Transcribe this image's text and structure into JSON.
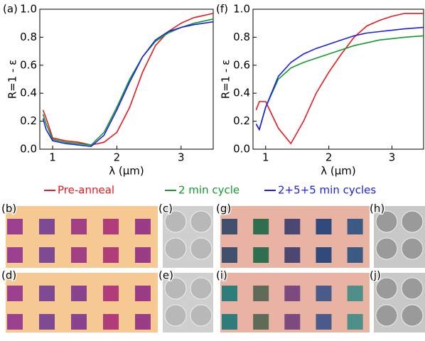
{
  "chart_data": [
    {
      "type": "line",
      "panel_label": "(a)",
      "xlabel": "λ (μm)",
      "ylabel": "R=1 - ε",
      "xlim": [
        0.8,
        3.5
      ],
      "ylim": [
        0,
        1
      ],
      "xticks": [
        1,
        2,
        3
      ],
      "yticks": [
        {
          "value": 0,
          "label": "0.0"
        },
        0.2,
        0.4,
        0.6,
        0.8,
        {
          "value": 1,
          "label": "1.0"
        }
      ],
      "x": [
        0.85,
        0.9,
        1.0,
        1.2,
        1.4,
        1.6,
        1.8,
        2.0,
        2.2,
        2.4,
        2.6,
        2.8,
        3.0,
        3.2,
        3.5
      ],
      "series": [
        {
          "name": "Pre-anneal",
          "color": "#e8191c",
          "values": [
            0.28,
            0.22,
            0.08,
            0.06,
            0.05,
            0.03,
            0.05,
            0.12,
            0.3,
            0.55,
            0.74,
            0.84,
            0.9,
            0.94,
            0.97
          ]
        },
        {
          "name": "2 min cycle",
          "color": "#139a2a",
          "values": [
            0.25,
            0.18,
            0.07,
            0.05,
            0.04,
            0.03,
            0.12,
            0.3,
            0.5,
            0.66,
            0.77,
            0.83,
            0.87,
            0.9,
            0.93
          ]
        },
        {
          "name": "2+5+5 min cycles",
          "color": "#1a1ee8",
          "values": [
            0.22,
            0.14,
            0.06,
            0.04,
            0.03,
            0.02,
            0.1,
            0.28,
            0.48,
            0.66,
            0.78,
            0.84,
            0.87,
            0.89,
            0.91
          ]
        }
      ]
    },
    {
      "type": "line",
      "panel_label": "(f)",
      "xlabel": "λ (μm)",
      "ylabel": "R=1 - ε",
      "xlim": [
        0.8,
        3.5
      ],
      "ylim": [
        0,
        1
      ],
      "xticks": [
        1,
        2,
        3
      ],
      "yticks": [
        {
          "value": 0,
          "label": "0.0"
        },
        0.2,
        0.4,
        0.6,
        0.8,
        {
          "value": 1,
          "label": "1.0"
        }
      ],
      "x": [
        0.85,
        0.9,
        1.0,
        1.2,
        1.4,
        1.6,
        1.8,
        2.0,
        2.2,
        2.4,
        2.6,
        2.8,
        3.0,
        3.2,
        3.5
      ],
      "series": [
        {
          "color": "#e8191c",
          "values": [
            0.28,
            0.34,
            0.34,
            0.15,
            0.04,
            0.2,
            0.4,
            0.55,
            0.68,
            0.8,
            0.88,
            0.92,
            0.95,
            0.97,
            0.97
          ]
        },
        {
          "color": "#139a2a",
          "values": [
            0.18,
            0.14,
            0.3,
            0.5,
            0.58,
            0.62,
            0.65,
            0.68,
            0.71,
            0.74,
            0.76,
            0.78,
            0.79,
            0.8,
            0.81
          ]
        },
        {
          "color": "#1a1ee8",
          "values": [
            0.18,
            0.14,
            0.3,
            0.52,
            0.62,
            0.68,
            0.72,
            0.75,
            0.78,
            0.81,
            0.83,
            0.84,
            0.85,
            0.86,
            0.87
          ]
        }
      ]
    }
  ],
  "image_panels": [
    {
      "label": "(b)"
    },
    {
      "label": "(c)"
    },
    {
      "label": "(g)"
    },
    {
      "label": "(h)"
    },
    {
      "label": "(d)"
    },
    {
      "label": "(e)"
    },
    {
      "label": "(i)"
    },
    {
      "label": "(j)"
    }
  ]
}
